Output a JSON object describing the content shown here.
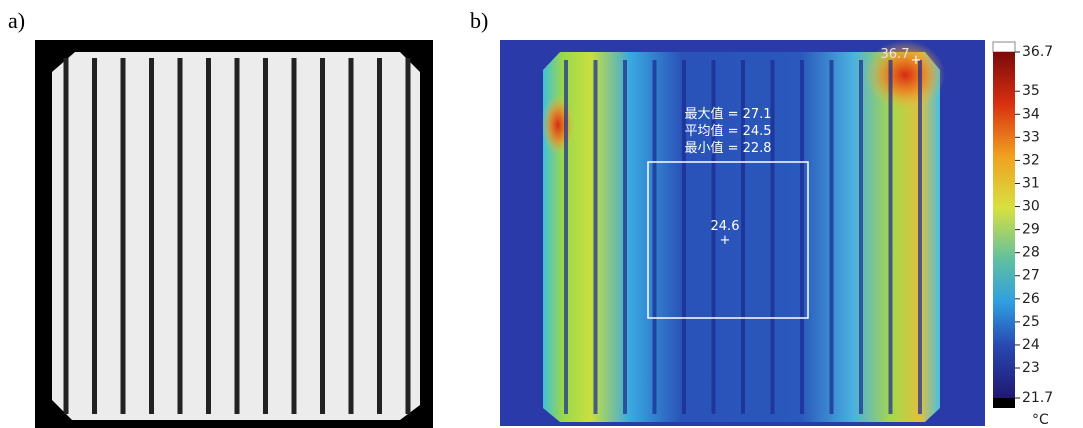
{
  "panels": {
    "a": {
      "label": "a)"
    },
    "b": {
      "label": "b)",
      "stats": [
        "最大值 = 27.1",
        "平均值 = 24.5",
        "最小值 = 22.8"
      ],
      "spot_max": "36.7",
      "center_value": "24.6",
      "colorbar": {
        "range": [
          21.7,
          36.7
        ],
        "ticks": [
          36.7,
          35,
          34,
          33,
          32,
          31,
          30,
          29,
          28,
          27,
          26,
          25,
          24,
          23,
          21.7
        ],
        "unit": "°C"
      }
    }
  }
}
